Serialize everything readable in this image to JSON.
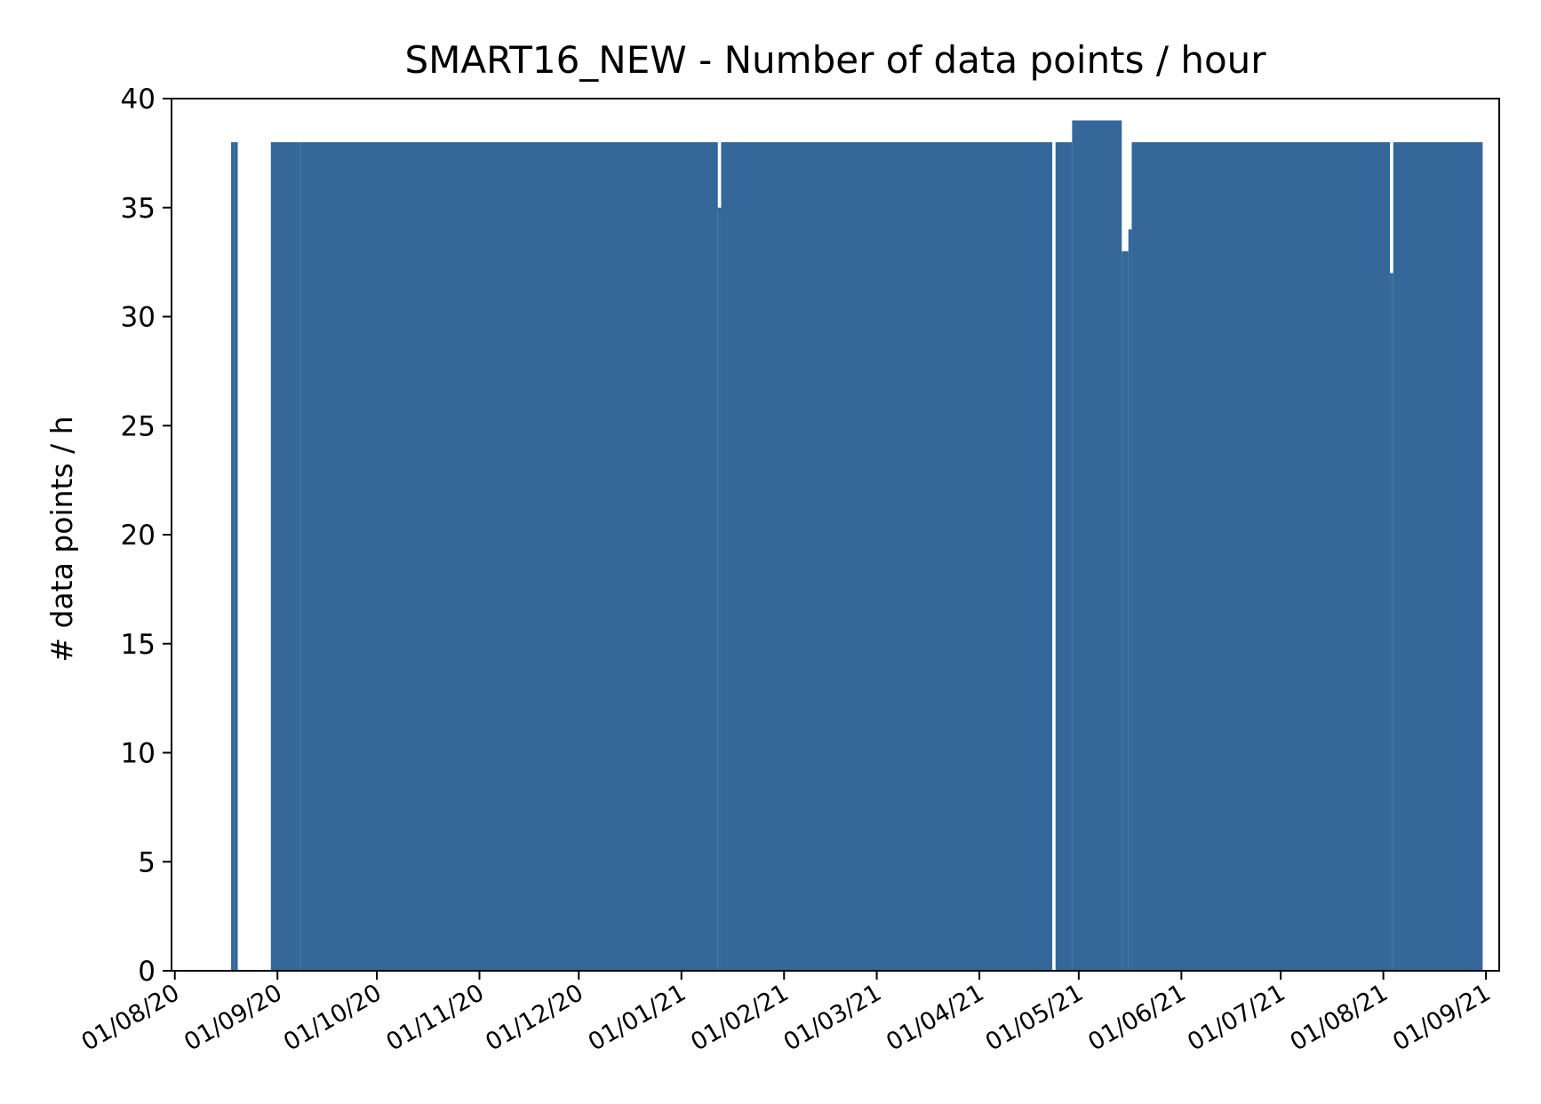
{
  "chart_data": {
    "type": "bar",
    "title": "SMART16_NEW -  Number of data points / hour",
    "xlabel": "",
    "ylabel": "# data points / h",
    "ylim": [
      0,
      40
    ],
    "xlim": [
      "2020-07-31",
      "2021-09-05"
    ],
    "bar_color": "#35679a",
    "y_ticks": [
      0,
      5,
      10,
      15,
      20,
      25,
      30,
      35,
      40
    ],
    "x_ticks": [
      {
        "date": "2020-08-01",
        "label": "01/08/20"
      },
      {
        "date": "2020-09-01",
        "label": "01/09/20"
      },
      {
        "date": "2020-10-01",
        "label": "01/10/20"
      },
      {
        "date": "2020-11-01",
        "label": "01/11/20"
      },
      {
        "date": "2020-12-01",
        "label": "01/12/20"
      },
      {
        "date": "2021-01-01",
        "label": "01/01/21"
      },
      {
        "date": "2021-02-01",
        "label": "01/02/21"
      },
      {
        "date": "2021-03-01",
        "label": "01/03/21"
      },
      {
        "date": "2021-04-01",
        "label": "01/04/21"
      },
      {
        "date": "2021-05-01",
        "label": "01/05/21"
      },
      {
        "date": "2021-06-01",
        "label": "01/06/21"
      },
      {
        "date": "2021-07-01",
        "label": "01/07/21"
      },
      {
        "date": "2021-08-01",
        "label": "01/08/21"
      },
      {
        "date": "2021-09-01",
        "label": "01/09/21"
      }
    ],
    "series": [
      {
        "points": [
          {
            "start": "2020-08-18",
            "end": "2020-08-19",
            "value": 38
          },
          {
            "start": "2020-08-19",
            "end": "2020-08-20",
            "value": 38
          },
          {
            "start": "2020-08-30",
            "end": "2020-09-08",
            "value": 38
          },
          {
            "start": "2020-09-08",
            "end": "2021-01-12",
            "value": 38
          },
          {
            "start": "2021-01-12",
            "end": "2021-01-13",
            "value": 35
          },
          {
            "start": "2021-01-13",
            "end": "2021-04-23",
            "value": 38
          },
          {
            "start": "2021-04-24",
            "end": "2021-04-29",
            "value": 38
          },
          {
            "start": "2021-04-29",
            "end": "2021-05-14",
            "value": 39
          },
          {
            "start": "2021-05-14",
            "end": "2021-05-16",
            "value": 33
          },
          {
            "start": "2021-05-16",
            "end": "2021-05-17",
            "value": 34
          },
          {
            "start": "2021-05-17",
            "end": "2021-08-03",
            "value": 38
          },
          {
            "start": "2021-08-03",
            "end": "2021-08-04",
            "value": 32
          },
          {
            "start": "2021-08-04",
            "end": "2021-08-31",
            "value": 38
          }
        ]
      }
    ]
  }
}
